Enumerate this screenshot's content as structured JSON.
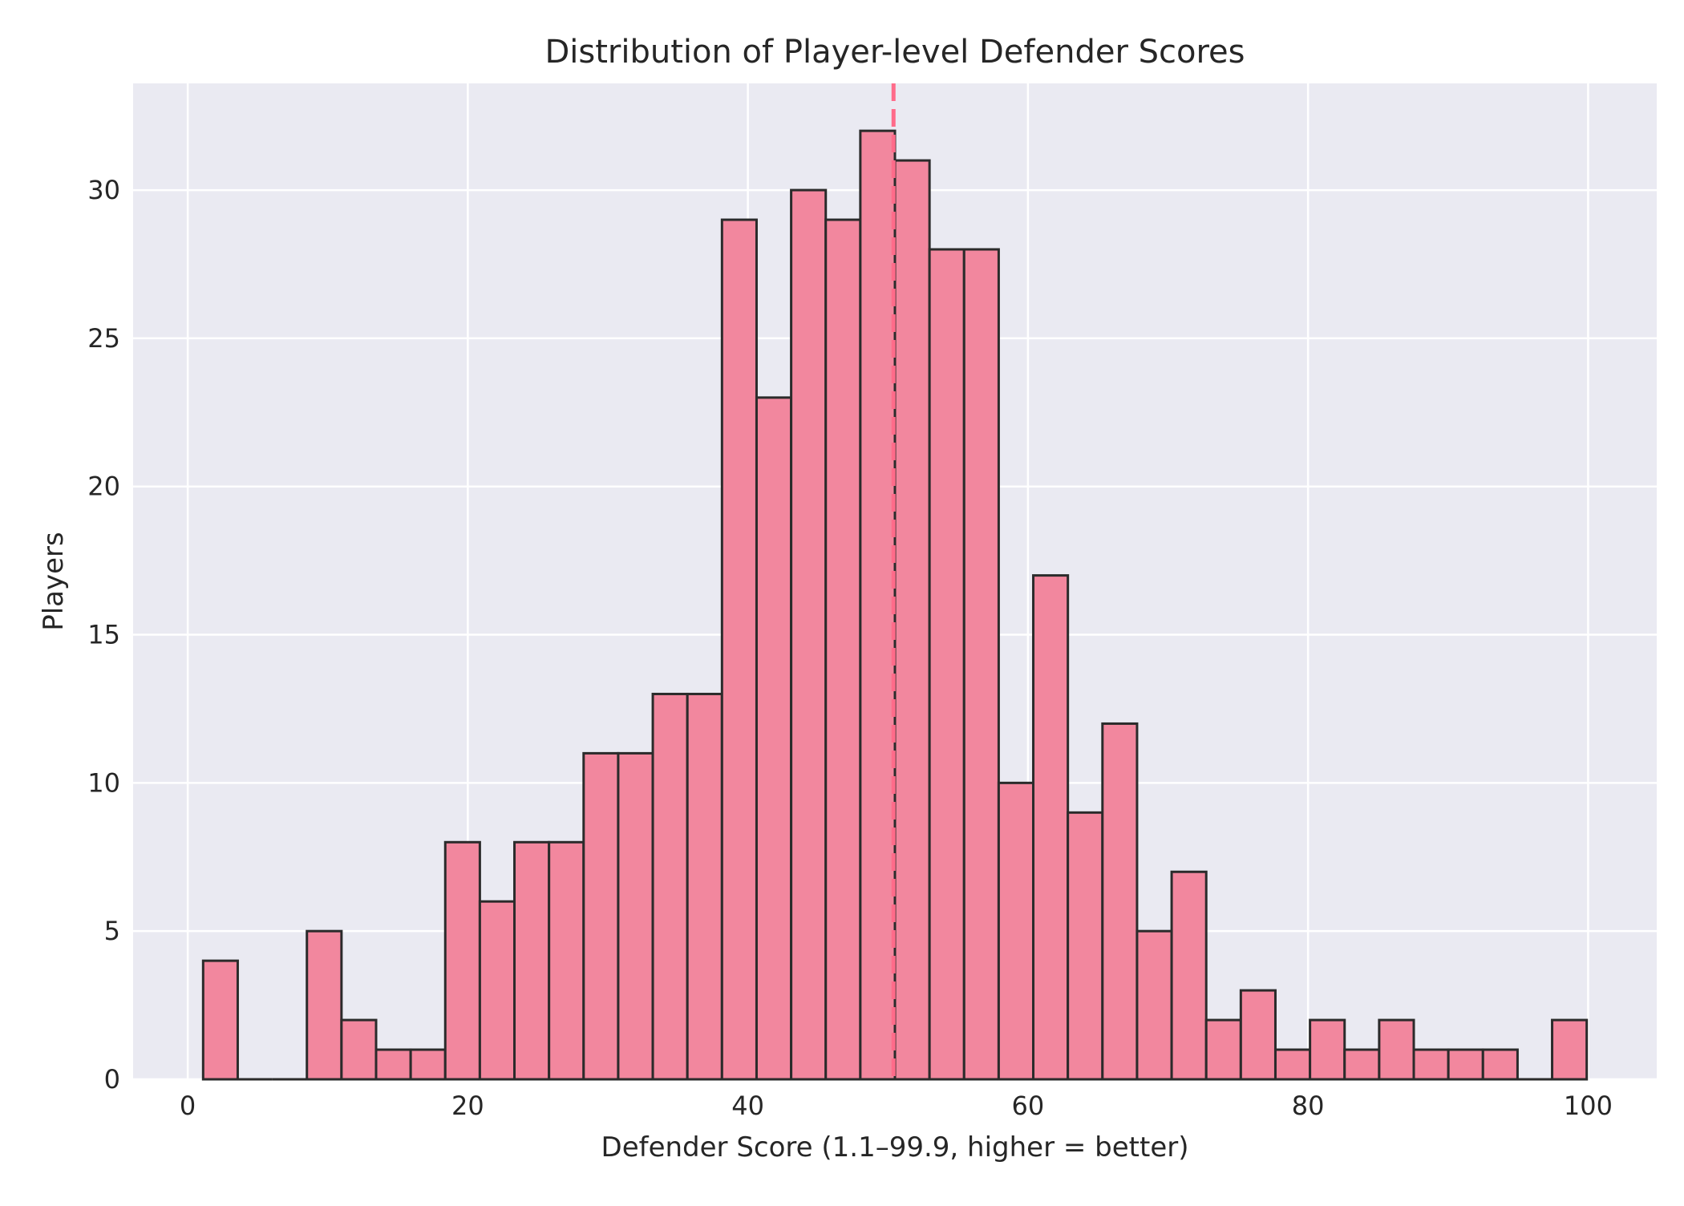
{
  "chart_data": {
    "type": "bar",
    "title": "Distribution of Player-level Defender Scores",
    "xlabel": "Defender Score (1.1–99.9, higher = better)",
    "ylabel": "Players",
    "xlim": [
      -3.9,
      104.9
    ],
    "ylim": [
      0,
      33.6
    ],
    "xticks": [
      0,
      20,
      40,
      60,
      80,
      100
    ],
    "yticks": [
      0,
      5,
      10,
      15,
      20,
      25,
      30
    ],
    "bin_start": 1.1,
    "bin_width": 2.47,
    "counts": [
      4,
      0,
      0,
      5,
      2,
      1,
      1,
      8,
      6,
      8,
      8,
      11,
      11,
      13,
      13,
      29,
      23,
      30,
      29,
      32,
      31,
      28,
      28,
      10,
      17,
      9,
      12,
      5,
      7,
      2,
      3,
      1,
      2,
      1,
      2,
      1,
      1,
      1,
      0,
      2
    ],
    "reference_line": {
      "x": 50.4,
      "style": "dashed"
    },
    "grid": true,
    "colors": {
      "background": "#eaeaf2",
      "bar_fill": "#f2879e",
      "bar_edge": "#2b2b2b",
      "reference_line": "#ff6b8a",
      "grid": "#ffffff"
    }
  }
}
